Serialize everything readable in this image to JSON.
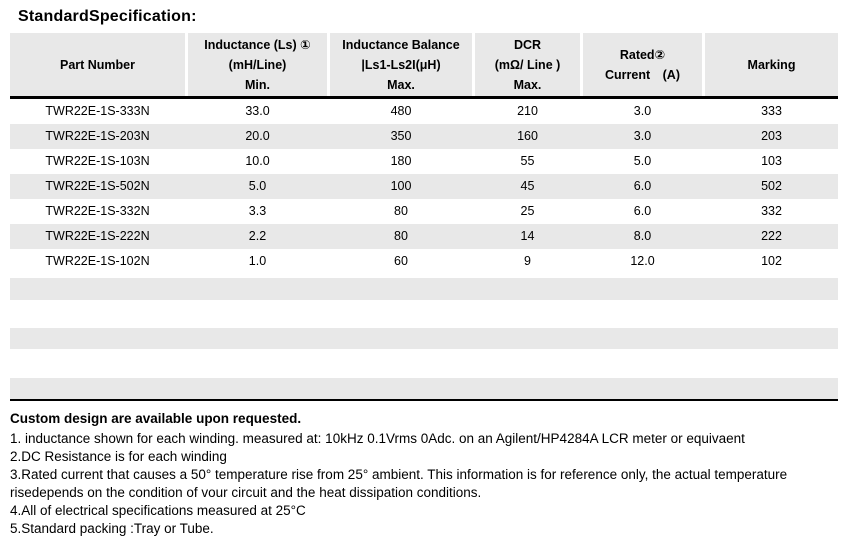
{
  "title": "StandardSpecification:",
  "colors": {
    "header_bg": "#e8e8e8",
    "row_alt_bg": "#e8e8e8",
    "row_bg": "#ffffff",
    "divider": "#000000",
    "text": "#000000"
  },
  "table": {
    "columns": [
      {
        "label": "Part Number"
      },
      {
        "label": "Inductance (Ls) ①\n(mH/Line)\nMin."
      },
      {
        "label": "Inductance Balance\n|Ls1-Ls2I(μH)\nMax."
      },
      {
        "label": "DCR\n(mΩ/ Line )\nMax."
      },
      {
        "label": "Rated②\nCurrent　(A)"
      },
      {
        "label": "Marking"
      }
    ],
    "rows": [
      [
        "TWR22E-1S-333N",
        "33.0",
        "480",
        "210",
        "3.0",
        "333"
      ],
      [
        "TWR22E-1S-203N",
        "20.0",
        "350",
        "160",
        "3.0",
        "203"
      ],
      [
        "TWR22E-1S-103N",
        "10.0",
        "180",
        "55",
        "5.0",
        "103"
      ],
      [
        "TWR22E-1S-502N",
        "5.0",
        "100",
        "45",
        "6.0",
        "502"
      ],
      [
        "TWR22E-1S-332N",
        "3.3",
        "80",
        "25",
        "6.0",
        "332"
      ],
      [
        "TWR22E-1S-222N",
        "2.2",
        "80",
        "14",
        "8.0",
        "222"
      ],
      [
        "TWR22E-1S-102N",
        "1.0",
        "60",
        "9",
        "12.0",
        "102"
      ]
    ]
  },
  "notes": {
    "heading": "Custom design are available upon requested.",
    "items": [
      "1. inductance shown for each winding. measured at: 10kHz 0.1Vrms 0Adc. on an Agilent/HP4284A LCR meter or equivaent",
      "2.DC Resistance is for each winding",
      "3.Rated current that causes a 50° temperature rise from 25° ambient. This information is for reference only, the actual temperature\nrisedepends on the condition of vour circuit and the heat dissipation conditions.",
      "4.All of electrical specifications measured at 25°C",
      "5.Standard packing :Tray or Tube."
    ]
  }
}
